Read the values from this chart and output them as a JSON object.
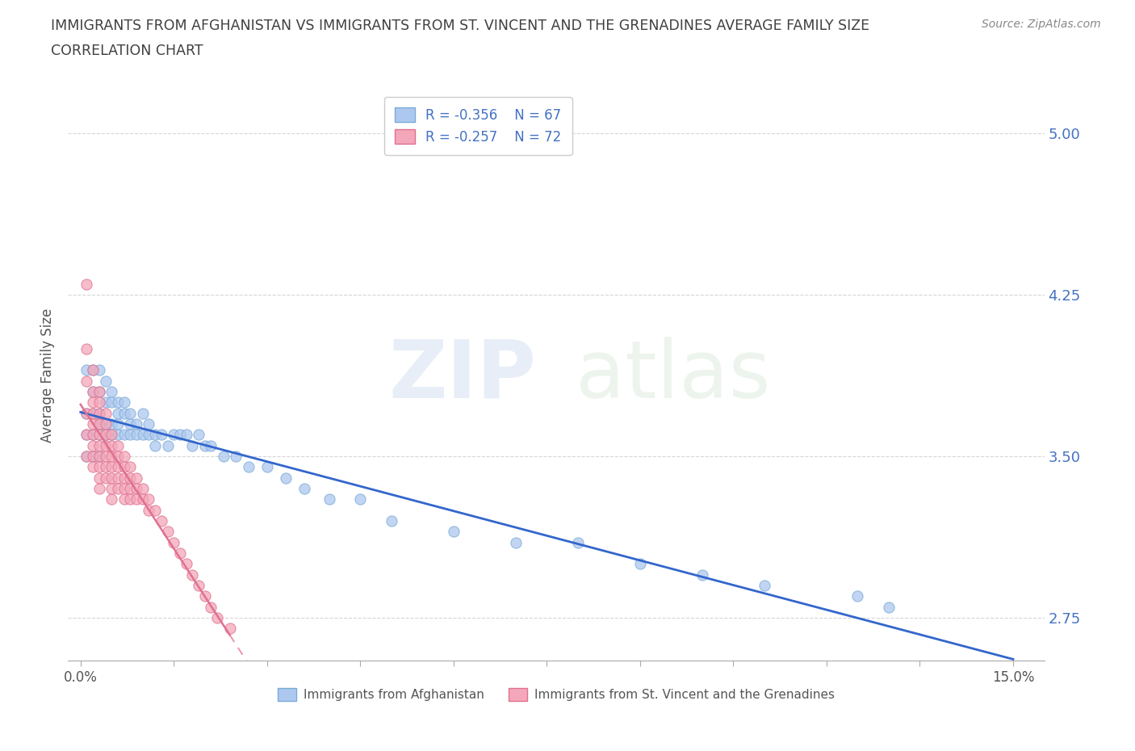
{
  "title_line1": "IMMIGRANTS FROM AFGHANISTAN VS IMMIGRANTS FROM ST. VINCENT AND THE GRENADINES AVERAGE FAMILY SIZE",
  "title_line2": "CORRELATION CHART",
  "source_text": "Source: ZipAtlas.com",
  "ylabel": "Average Family Size",
  "xlim": [
    -0.002,
    0.155
  ],
  "ylim": [
    2.55,
    5.2
  ],
  "yticks": [
    2.75,
    3.5,
    4.25,
    5.0
  ],
  "ytick_labels": [
    "2.75",
    "3.50",
    "4.25",
    "5.00"
  ],
  "xtick_positions": [
    0.0,
    0.015,
    0.03,
    0.045,
    0.06,
    0.075,
    0.09,
    0.105,
    0.12,
    0.135,
    0.15
  ],
  "xtick_labels": [
    "0.0%",
    "",
    "",
    "",
    "",
    "",
    "",
    "",
    "",
    "",
    "15.0%"
  ],
  "watermark_zip": "ZIP",
  "watermark_atlas": "atlas",
  "series": [
    {
      "name": "Immigrants from Afghanistan",
      "color": "#adc8ee",
      "border_color": "#7aaad8",
      "R": -0.356,
      "N": 67,
      "trend_color": "#3366cc",
      "trend_solid": true,
      "x": [
        0.001,
        0.001,
        0.001,
        0.001,
        0.002,
        0.002,
        0.002,
        0.002,
        0.002,
        0.003,
        0.003,
        0.003,
        0.003,
        0.003,
        0.003,
        0.004,
        0.004,
        0.004,
        0.004,
        0.005,
        0.005,
        0.005,
        0.005,
        0.006,
        0.006,
        0.006,
        0.006,
        0.007,
        0.007,
        0.007,
        0.008,
        0.008,
        0.008,
        0.009,
        0.009,
        0.01,
        0.01,
        0.011,
        0.011,
        0.012,
        0.012,
        0.013,
        0.014,
        0.015,
        0.016,
        0.017,
        0.018,
        0.019,
        0.02,
        0.021,
        0.023,
        0.025,
        0.027,
        0.03,
        0.033,
        0.036,
        0.04,
        0.045,
        0.05,
        0.06,
        0.07,
        0.08,
        0.09,
        0.1,
        0.11,
        0.125,
        0.13
      ],
      "y": [
        3.9,
        3.7,
        3.6,
        3.5,
        3.9,
        3.8,
        3.7,
        3.6,
        3.5,
        3.9,
        3.8,
        3.7,
        3.65,
        3.6,
        3.5,
        3.85,
        3.75,
        3.65,
        3.6,
        3.8,
        3.75,
        3.65,
        3.6,
        3.75,
        3.7,
        3.65,
        3.6,
        3.75,
        3.7,
        3.6,
        3.7,
        3.65,
        3.6,
        3.65,
        3.6,
        3.7,
        3.6,
        3.65,
        3.6,
        3.6,
        3.55,
        3.6,
        3.55,
        3.6,
        3.6,
        3.6,
        3.55,
        3.6,
        3.55,
        3.55,
        3.5,
        3.5,
        3.45,
        3.45,
        3.4,
        3.35,
        3.3,
        3.3,
        3.2,
        3.15,
        3.1,
        3.1,
        3.0,
        2.95,
        2.9,
        2.85,
        2.8
      ]
    },
    {
      "name": "Immigrants from St. Vincent and the Grenadines",
      "color": "#f4a7b9",
      "border_color": "#e07090",
      "R": -0.257,
      "N": 72,
      "trend_color": "#e07090",
      "trend_solid": false,
      "x": [
        0.001,
        0.001,
        0.001,
        0.001,
        0.001,
        0.001,
        0.002,
        0.002,
        0.002,
        0.002,
        0.002,
        0.002,
        0.002,
        0.002,
        0.002,
        0.003,
        0.003,
        0.003,
        0.003,
        0.003,
        0.003,
        0.003,
        0.003,
        0.003,
        0.003,
        0.004,
        0.004,
        0.004,
        0.004,
        0.004,
        0.004,
        0.004,
        0.005,
        0.005,
        0.005,
        0.005,
        0.005,
        0.005,
        0.005,
        0.006,
        0.006,
        0.006,
        0.006,
        0.006,
        0.007,
        0.007,
        0.007,
        0.007,
        0.007,
        0.008,
        0.008,
        0.008,
        0.008,
        0.009,
        0.009,
        0.009,
        0.01,
        0.01,
        0.011,
        0.011,
        0.012,
        0.013,
        0.014,
        0.015,
        0.016,
        0.017,
        0.018,
        0.019,
        0.02,
        0.021,
        0.022,
        0.024
      ],
      "y": [
        4.3,
        4.0,
        3.85,
        3.7,
        3.6,
        3.5,
        3.9,
        3.8,
        3.75,
        3.7,
        3.65,
        3.6,
        3.55,
        3.5,
        3.45,
        3.8,
        3.75,
        3.7,
        3.65,
        3.6,
        3.55,
        3.5,
        3.45,
        3.4,
        3.35,
        3.7,
        3.65,
        3.6,
        3.55,
        3.5,
        3.45,
        3.4,
        3.6,
        3.55,
        3.5,
        3.45,
        3.4,
        3.35,
        3.3,
        3.55,
        3.5,
        3.45,
        3.4,
        3.35,
        3.5,
        3.45,
        3.4,
        3.35,
        3.3,
        3.45,
        3.4,
        3.35,
        3.3,
        3.4,
        3.35,
        3.3,
        3.35,
        3.3,
        3.3,
        3.25,
        3.25,
        3.2,
        3.15,
        3.1,
        3.05,
        3.0,
        2.95,
        2.9,
        2.85,
        2.8,
        2.75,
        2.7
      ]
    }
  ],
  "legend_color": "#4472c4",
  "background_color": "#ffffff",
  "grid_color": "#cccccc",
  "title_color": "#404040",
  "axis_label_color": "#555555",
  "right_tick_color": "#4472c4"
}
